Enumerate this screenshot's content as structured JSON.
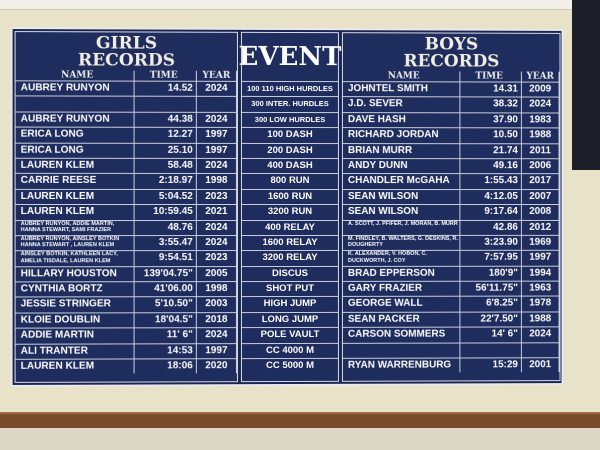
{
  "girls": {
    "title_line1": "GIRLS",
    "title_line2": "RECORDS",
    "headers": [
      "NAME",
      "TIME",
      "YEAR"
    ],
    "rows": [
      [
        "AUBREY RUNYON",
        "14.52",
        "2024"
      ],
      [
        "",
        "",
        ""
      ],
      [
        "AUBREY RUNYON",
        "44.38",
        "2024"
      ],
      [
        "ERICA LONG",
        "12.27",
        "1997"
      ],
      [
        "ERICA LONG",
        "25.10",
        "1997"
      ],
      [
        "LAUREN KLEM",
        "58.48",
        "2024"
      ],
      [
        "CARRIE REESE",
        "2:18.97",
        "1998"
      ],
      [
        "LAUREN KLEM",
        "5:04.52",
        "2023"
      ],
      [
        "LAUREN KLEM",
        "10:59.45",
        "2021"
      ],
      [
        "AUBREY RUNYON, ADDIE MARTIN, HANNA STEWART, SAMI FRAZIER",
        "48.76",
        "2024"
      ],
      [
        "AUBREY RUNYON, AINSLEY BOTKIN HANNA STEWART , LAUREN KLEM",
        "3:55.47",
        "2024"
      ],
      [
        "AINSLEY BOTKIN, KATHLEEN LACY, AMELIA TISDALE, LAUREN KLEM",
        "9:54.51",
        "2023"
      ],
      [
        "HILLARY HOUSTON",
        "139'04.75\"",
        "2005"
      ],
      [
        "CYNTHIA BORTZ",
        "41'06.00",
        "1998"
      ],
      [
        "JESSIE STRINGER",
        "5'10.50\"",
        "2003"
      ],
      [
        "KLOIE DOUBLIN",
        "18'04.5\"",
        "2018"
      ],
      [
        "ADDIE MARTIN",
        "11' 6\"",
        "2024"
      ],
      [
        "ALI TRANTER",
        "14:53",
        "1997"
      ],
      [
        "LAUREN KLEM",
        "18:06",
        "2020"
      ]
    ]
  },
  "event": {
    "title": "EVENT",
    "items": [
      "100 110 HIGH HURDLES",
      "300 INTER. HURDLES",
      "300 LOW HURDLES",
      "100 DASH",
      "200 DASH",
      "400 DASH",
      "800 RUN",
      "1600 RUN",
      "3200 RUN",
      "400 RELAY",
      "1600 RELAY",
      "3200 RELAY",
      "DISCUS",
      "SHOT PUT",
      "HIGH JUMP",
      "LONG JUMP",
      "POLE VAULT",
      "CC 4000 M",
      "CC 5000 M"
    ]
  },
  "boys": {
    "title_line1": "BOYS",
    "title_line2": "RECORDS",
    "headers": [
      "NAME",
      "TIME",
      "YEAR"
    ],
    "rows": [
      [
        "JOHNTEL SMITH",
        "14.31",
        "2009"
      ],
      [
        "J.D. SEVER",
        "38.32",
        "2024"
      ],
      [
        "DAVE HASH",
        "37.90",
        "1983"
      ],
      [
        "RICHARD JORDAN",
        "10.50",
        "1988"
      ],
      [
        "BRIAN MURR",
        "21.74",
        "2011"
      ],
      [
        "ANDY DUNN",
        "49.16",
        "2006"
      ],
      [
        "CHANDLER McGAHA",
        "1:55.43",
        "2017"
      ],
      [
        "SEAN WILSON",
        "4:12.05",
        "2007"
      ],
      [
        "SEAN WILSON",
        "9:17.64",
        "2008"
      ],
      [
        "A. SCOTT, J. PFIFER, J. MORAN, B. MURR",
        "42.86",
        "2012"
      ],
      [
        "M. FINDLEY, B. WALTERS, G. DESKINS, R. DOUGHERTY",
        "3:23.90",
        "1969"
      ],
      [
        "K. ALEXANDER, V. HOBON, C. DUCKWORTH, J. COY",
        "7:57.95",
        "1997"
      ],
      [
        "BRAD EPPERSON",
        "180'9\"",
        "1994"
      ],
      [
        "GARY FRAZIER",
        "56'11.75\"",
        "1963"
      ],
      [
        "GEORGE WALL",
        "6'8.25\"",
        "1978"
      ],
      [
        "SEAN PACKER",
        "22'7.50\"",
        "1988"
      ],
      [
        "CARSON SOMMERS",
        "14' 6\"",
        "2024"
      ],
      [
        "",
        "",
        ""
      ],
      [
        "RYAN WARRENBURG",
        "15:29",
        "2001"
      ]
    ]
  }
}
